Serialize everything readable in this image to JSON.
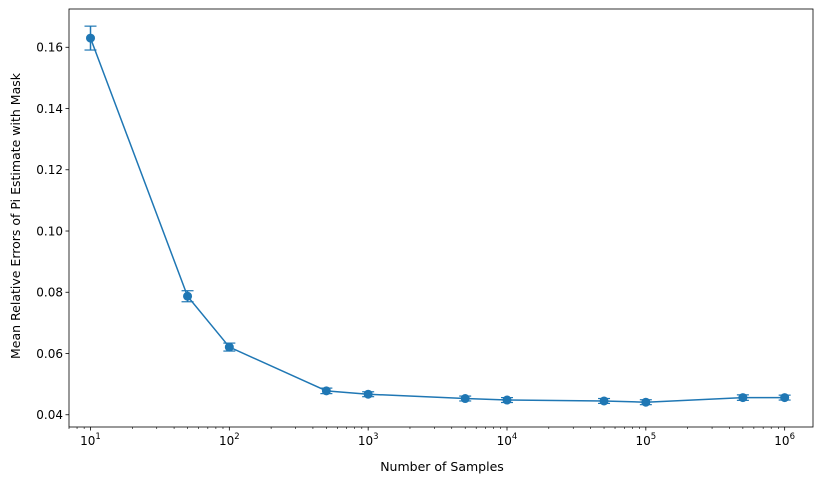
{
  "chart_data": {
    "type": "line",
    "title": "",
    "xlabel": "Number of Samples",
    "ylabel": "Mean Relative Errors of Pi Estimate with Mask",
    "xscale": "log",
    "xlim": [
      7,
      1600000
    ],
    "ylim": [
      0.036,
      0.1725
    ],
    "grid": false,
    "color": "#1f77b4",
    "x_ticks": [
      {
        "value": 10,
        "base": "10",
        "exp": "1"
      },
      {
        "value": 100,
        "base": "10",
        "exp": "2"
      },
      {
        "value": 1000,
        "base": "10",
        "exp": "3"
      },
      {
        "value": 10000,
        "base": "10",
        "exp": "4"
      },
      {
        "value": 100000,
        "base": "10",
        "exp": "5"
      },
      {
        "value": 1000000,
        "base": "10",
        "exp": "6"
      }
    ],
    "y_ticks": [
      "0.04",
      "0.06",
      "0.08",
      "0.10",
      "0.12",
      "0.14",
      "0.16"
    ],
    "series": [
      {
        "x": [
          10,
          50,
          100,
          500,
          1000,
          5000,
          10000,
          50000,
          100000,
          500000,
          1000000
        ],
        "y": [
          0.163,
          0.0787,
          0.0621,
          0.0478,
          0.0467,
          0.0453,
          0.0448,
          0.0445,
          0.0441,
          0.0456,
          0.0456
        ],
        "yerr": [
          0.0039,
          0.0018,
          0.0013,
          0.0009,
          0.0008,
          0.0008,
          0.0008,
          0.0008,
          0.0008,
          0.0009,
          0.0008
        ]
      }
    ]
  }
}
